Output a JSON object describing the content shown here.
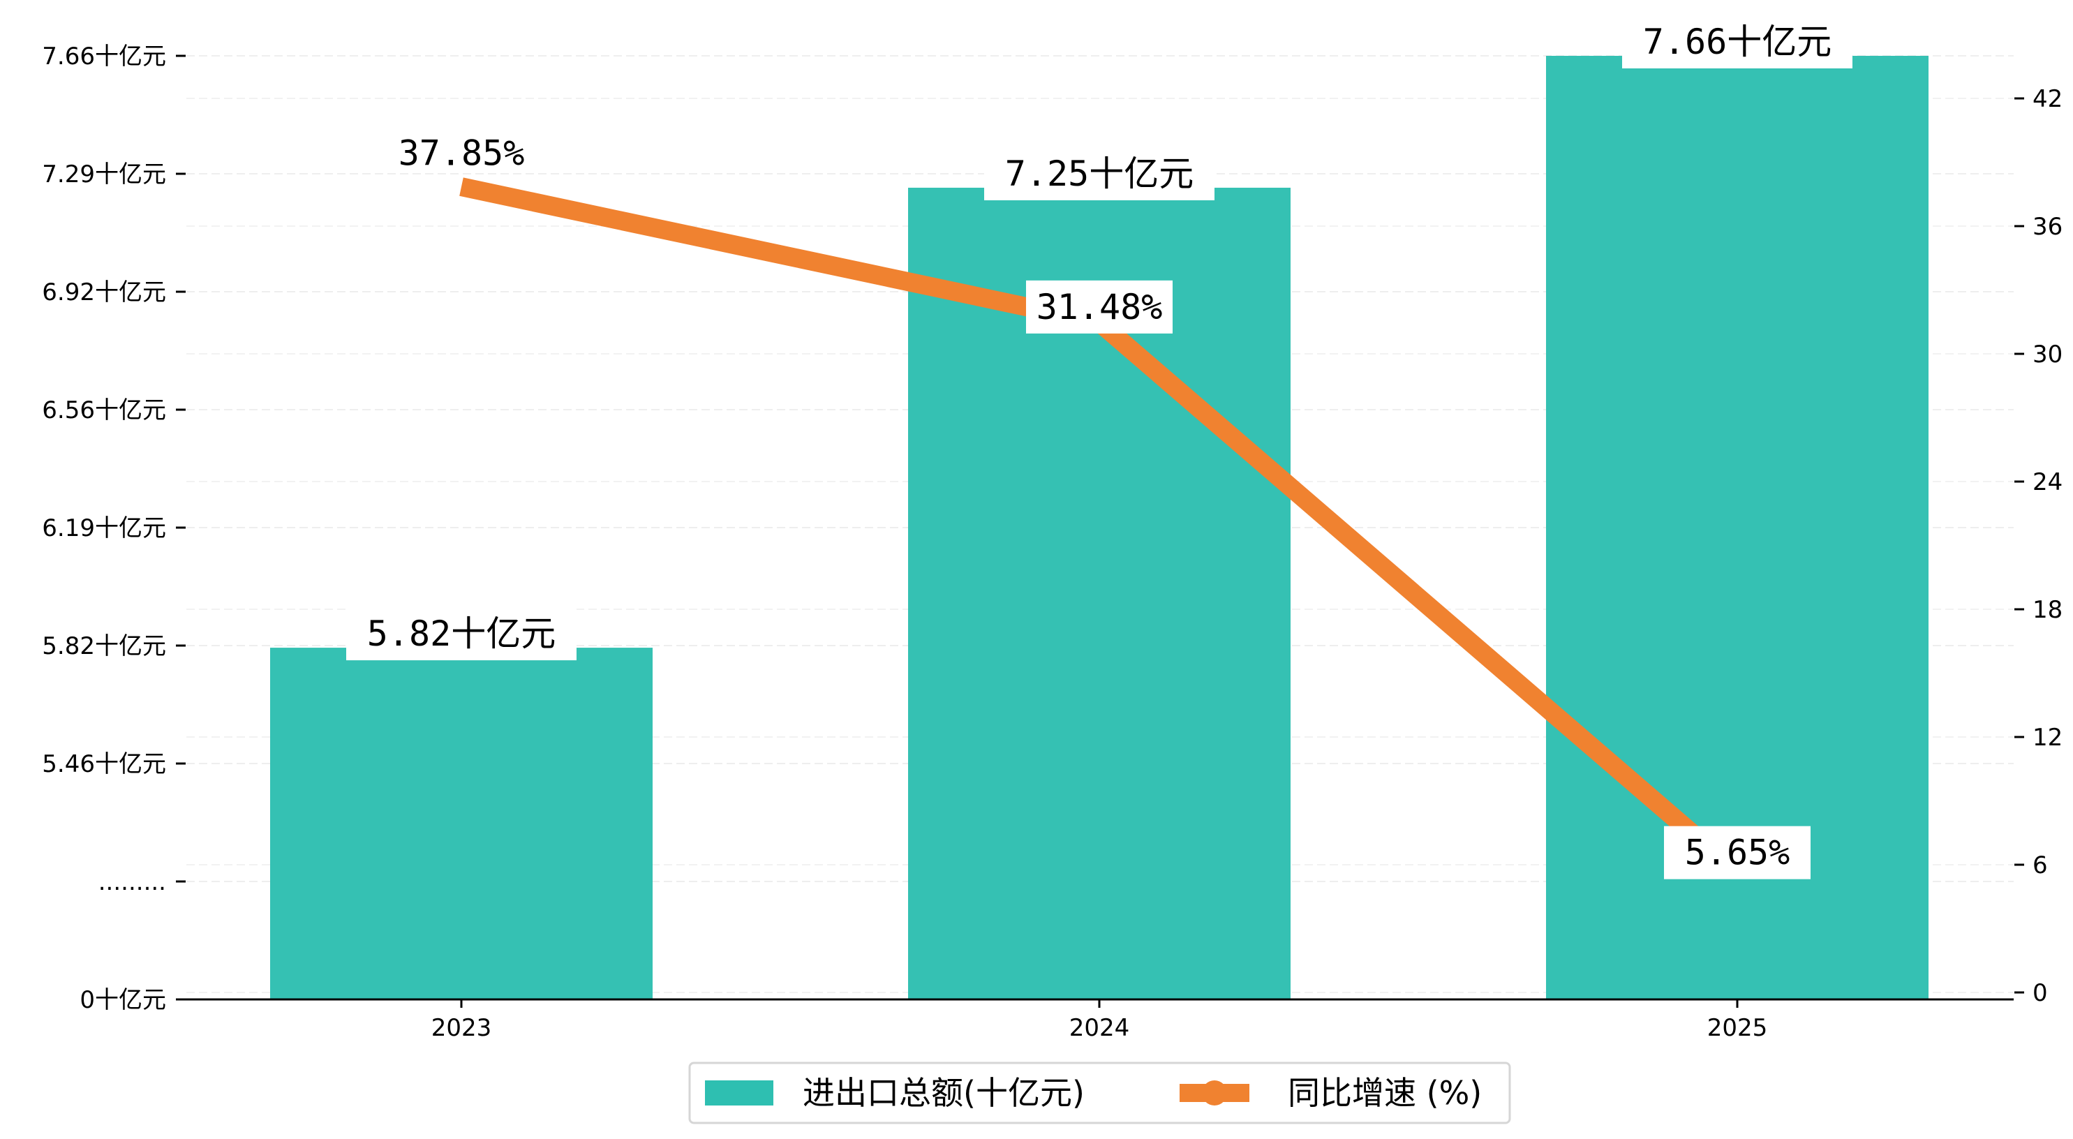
{
  "chart_data": {
    "type": "bar",
    "categories": [
      "2023",
      "2024",
      "2025"
    ],
    "series": [
      {
        "name": "进出口总额(十亿元)",
        "type": "bar",
        "axis": "left",
        "color": "#2ebfb1",
        "values": [
          5.82,
          7.25,
          7.66
        ],
        "labels": [
          "5.82十亿元",
          "7.25十亿元",
          "7.66十亿元"
        ]
      },
      {
        "name": "同比增速 (%)",
        "type": "line",
        "axis": "right",
        "color": "#f08230",
        "values": [
          37.85,
          31.48,
          5.65
        ],
        "labels": [
          "37.85%",
          "31.48%",
          "5.65%"
        ]
      }
    ],
    "left_axis": {
      "tick_labels": [
        "0十亿元",
        ".........",
        "5.46十亿元",
        "5.82十亿元",
        "6.19十亿元",
        "6.56十亿元",
        "6.92十亿元",
        "7.29十亿元",
        "7.66十亿元"
      ],
      "broken": true,
      "ylim_upper_segment": [
        5.46,
        7.66
      ]
    },
    "right_axis": {
      "ticks": [
        0,
        6,
        12,
        18,
        24,
        30,
        36,
        42
      ],
      "tick_labels": [
        "0",
        "6",
        "12",
        "18",
        "24",
        "30",
        "36",
        "42"
      ],
      "ylim": [
        0,
        44.5
      ]
    },
    "grid": true,
    "legend": {
      "placement": "bottom-center",
      "entries": [
        "进出口总额(十亿元)",
        "同比增速 (%)"
      ]
    }
  }
}
